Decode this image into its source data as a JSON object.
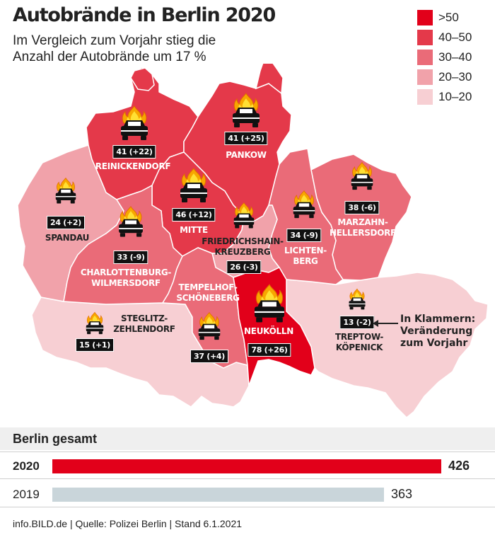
{
  "header": {
    "title": "Autobrände in Berlin 2020",
    "subtitle": "Im Vergleich zum Vorjahr stieg die Anzahl der Autobrände um 17 %"
  },
  "legend": [
    {
      "label": ">50",
      "color": "#e2001a"
    },
    {
      "label": "40–50",
      "color": "#e4394a"
    },
    {
      "label": "30–40",
      "color": "#ea6b78"
    },
    {
      "label": "20–30",
      "color": "#f1a2aa"
    },
    {
      "label": "10–20",
      "color": "#f7cfd3"
    }
  ],
  "districts": {
    "reinickendorf": {
      "name": "REINICKENDORF",
      "count": "41 (+22)",
      "color": "#e4394a"
    },
    "pankow": {
      "name": "PANKOW",
      "count": "41 (+25)",
      "color": "#e4394a"
    },
    "spandau": {
      "name": "SPANDAU",
      "count": "24 (+2)",
      "color": "#f1a2aa"
    },
    "mitte": {
      "name": "MITTE",
      "count": "46 (+12)",
      "color": "#e4394a"
    },
    "friedrichshain": {
      "name": "FRIEDRICHSHAIN-\nKREUZBERG",
      "count": "26 (-3)",
      "color": "#f1a2aa"
    },
    "lichtenberg": {
      "name": "LICHTEN-\nBERG",
      "count": "34 (-9)",
      "color": "#ea6b78"
    },
    "marzahn": {
      "name": "MARZAHN-\nHELLERSDORF",
      "count": "38 (-6)",
      "color": "#ea6b78"
    },
    "charlottenburg": {
      "name": "CHARLOTTENBURG-\nWILMERSDORF",
      "count": "33 (-9)",
      "color": "#ea6b78"
    },
    "tempelhof": {
      "name": "TEMPELHOF-\nSCHÖNEBERG",
      "count": "37 (+4)",
      "color": "#ea6b78"
    },
    "steglitz": {
      "name": "STEGLITZ-\nZEHLENDORF",
      "count": "15 (+1)",
      "color": "#f7cfd3"
    },
    "neukoelln": {
      "name": "NEUKÖLLN",
      "count": "78 (+26)",
      "color": "#e2001a"
    },
    "treptow": {
      "name": "TREPTOW-\nKÖPENICK",
      "count": "13 (-2)",
      "color": "#f7cfd3"
    }
  },
  "note": "In Klammern:\nVeränderung\nzum Vorjahr",
  "totals": {
    "title": "Berlin gesamt",
    "rows": [
      {
        "year": "2020",
        "value": 426,
        "label": "426",
        "color": "#e2001a"
      },
      {
        "year": "2019",
        "value": 363,
        "label": "363",
        "color": "#c9d5da"
      }
    ]
  },
  "source": "info.BILD.de | Quelle: Polizei Berlin | Stand 6.1.2021"
}
